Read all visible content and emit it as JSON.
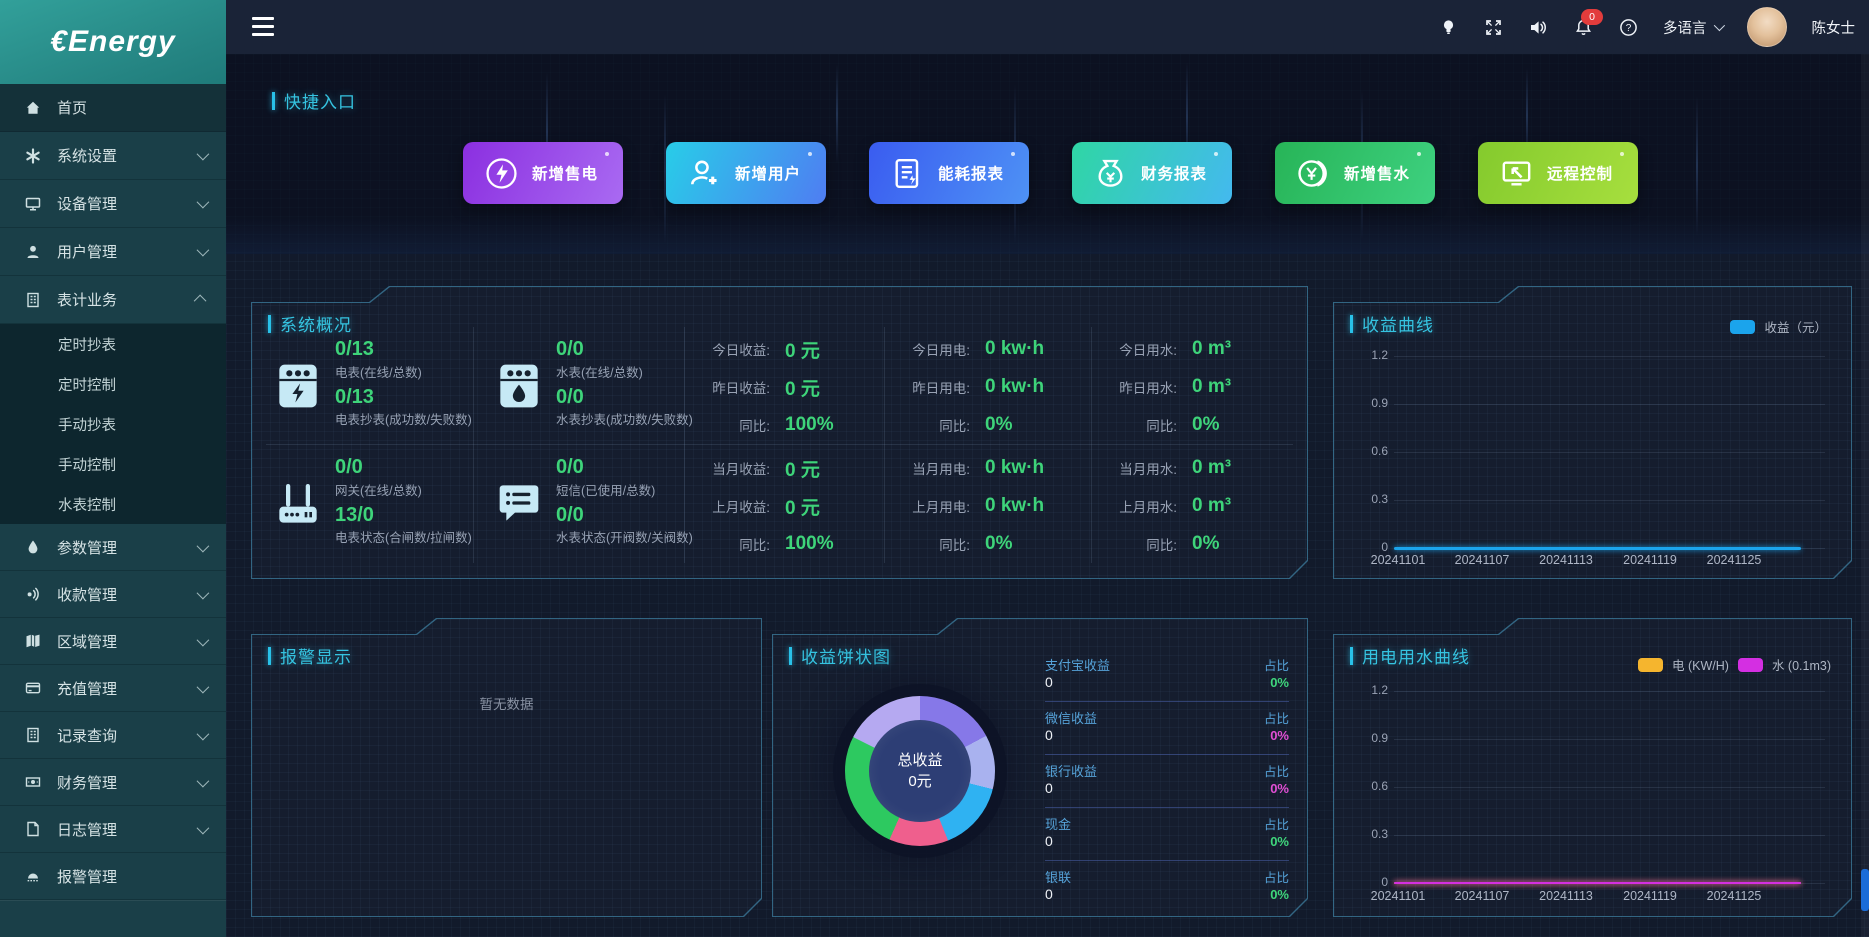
{
  "topbar": {
    "notification_count": "0",
    "language_label": "多语言",
    "username": "陈女士"
  },
  "sidebar": {
    "logo_text": "€Energy",
    "menu_top": [
      {
        "label": "首页",
        "icon": "home-icon",
        "active": true,
        "chevron": ""
      },
      {
        "label": "系统设置",
        "icon": "gear-icon",
        "chevron": "down"
      },
      {
        "label": "设备管理",
        "icon": "monitor-icon",
        "chevron": "down"
      },
      {
        "label": "用户管理",
        "icon": "user-icon",
        "chevron": "down"
      },
      {
        "label": "表计业务",
        "icon": "meter-icon",
        "chevron": "up"
      }
    ],
    "submenu": [
      "定时抄表",
      "定时控制",
      "手动抄表",
      "手动控制",
      "水表控制"
    ],
    "menu_bottom": [
      {
        "label": "参数管理",
        "icon": "droplet-icon",
        "chevron": "down"
      },
      {
        "label": "收款管理",
        "icon": "payment-icon",
        "chevron": "down"
      },
      {
        "label": "区域管理",
        "icon": "map-icon",
        "chevron": "down"
      },
      {
        "label": "充值管理",
        "icon": "card-icon",
        "chevron": "down"
      },
      {
        "label": "记录查询",
        "icon": "records-icon",
        "chevron": "down"
      },
      {
        "label": "财务管理",
        "icon": "finance-icon",
        "chevron": "down"
      },
      {
        "label": "日志管理",
        "icon": "log-icon",
        "chevron": "down"
      },
      {
        "label": "报警管理",
        "icon": "alarm-icon",
        "chevron": ""
      }
    ]
  },
  "quick_entry": {
    "title": "快捷入口",
    "buttons": [
      {
        "label": "新增售电",
        "icon": "lightning-icon",
        "color_from": "#8b2fe0",
        "color_to": "#a96af2"
      },
      {
        "label": "新增用户",
        "icon": "user-plus-icon",
        "color_from": "#28cde8",
        "color_to": "#4f7df2"
      },
      {
        "label": "能耗报表",
        "icon": "report-icon",
        "color_from": "#3a5cf0",
        "color_to": "#4e92f5"
      },
      {
        "label": "财务报表",
        "icon": "moneybag-icon",
        "color_from": "#2fd6a4",
        "color_to": "#44b9ef"
      },
      {
        "label": "新增售水",
        "icon": "coin-icon",
        "color_from": "#27b457",
        "color_to": "#3ed180"
      },
      {
        "label": "远程控制",
        "icon": "remote-icon",
        "color_from": "#84ca2d",
        "color_to": "#a7df3e"
      }
    ]
  },
  "system_overview": {
    "title": "系统概况",
    "meter_stats": [
      {
        "icon": "electric-meter-icon",
        "value1": "0/13",
        "label1": "电表(在线/总数)",
        "value2": "0/13",
        "label2": "电表抄表(成功数/失败数)"
      },
      {
        "icon": "water-meter-icon",
        "value1": "0/0",
        "label1": "水表(在线/总数)",
        "value2": "0/0",
        "label2": "水表抄表(成功数/失败数)"
      },
      {
        "icon": "gateway-icon",
        "value1": "0/0",
        "label1": "网关(在线/总数)",
        "value2": "13/0",
        "label2": "电表状态(合闸数/拉闸数)"
      },
      {
        "icon": "sms-icon",
        "value1": "0/0",
        "label1": "短信(已使用/总数)",
        "value2": "0/0",
        "label2": "水表状态(开阀数/关阀数)"
      }
    ],
    "stat_columns": [
      {
        "rows": [
          {
            "label": "今日收益:",
            "value": "0 元"
          },
          {
            "label": "昨日收益:",
            "value": "0 元"
          },
          {
            "label": "同比:",
            "value": "100%"
          },
          {
            "label": "当月收益:",
            "value": "0 元"
          },
          {
            "label": "上月收益:",
            "value": "0 元"
          },
          {
            "label": "同比:",
            "value": "100%"
          }
        ]
      },
      {
        "rows": [
          {
            "label": "今日用电:",
            "value": "0 kw·h"
          },
          {
            "label": "昨日用电:",
            "value": "0 kw·h"
          },
          {
            "label": "同比:",
            "value": "0%"
          },
          {
            "label": "当月用电:",
            "value": "0 kw·h"
          },
          {
            "label": "上月用电:",
            "value": "0 kw·h"
          },
          {
            "label": "同比:",
            "value": "0%"
          }
        ]
      },
      {
        "rows": [
          {
            "label": "今日用水:",
            "value": "0 m³"
          },
          {
            "label": "昨日用水:",
            "value": "0 m³"
          },
          {
            "label": "同比:",
            "value": "0%"
          },
          {
            "label": "当月用水:",
            "value": "0 m³"
          },
          {
            "label": "上月用水:",
            "value": "0 m³"
          },
          {
            "label": "同比:",
            "value": "0%"
          }
        ]
      }
    ]
  },
  "alarm_panel": {
    "title": "报警显示",
    "empty_text": "暂无数据"
  },
  "pie_panel": {
    "title": "收益饼状图",
    "center_title": "总收益",
    "center_value": "0元",
    "center_color": "#2d3e75",
    "legend": [
      {
        "label": "支付宝收益",
        "value": "0",
        "ratio_label": "占比",
        "ratio": "0%",
        "ratio_color": "#3fd67c"
      },
      {
        "label": "微信收益",
        "value": "0",
        "ratio_label": "占比",
        "ratio": "0%",
        "ratio_color": "#e14fd4"
      },
      {
        "label": "银行收益",
        "value": "0",
        "ratio_label": "占比",
        "ratio": "0%",
        "ratio_color": "#e14fd4"
      },
      {
        "label": "现金",
        "value": "0",
        "ratio_label": "占比",
        "ratio": "0%",
        "ratio_color": "#3fd67c"
      },
      {
        "label": "银联",
        "value": "0",
        "ratio_label": "占比",
        "ratio": "0%",
        "ratio_color": "#3fd67c"
      }
    ],
    "visual_segments": [
      {
        "color": "#8678e8",
        "to": 62
      },
      {
        "color": "#a9b2ef",
        "to": 104
      },
      {
        "color": "#2fb2f2",
        "to": 158
      },
      {
        "color": "#ef5f8d",
        "to": 204
      },
      {
        "color": "#2dc960",
        "to": 297
      },
      {
        "color": "#b5a9f1",
        "to": 360
      }
    ]
  },
  "revenue_chart": {
    "title": "收益曲线",
    "legend": [
      {
        "name": "收益（元）",
        "color": "#1ba4ec"
      }
    ],
    "y_ticks": [
      "1.2",
      "0.9",
      "0.6",
      "0.3",
      "0"
    ],
    "x_ticks": [
      "20241101",
      "20241107",
      "20241113",
      "20241119",
      "20241125"
    ],
    "series": [
      {
        "name": "收益（元）",
        "color": "#1ba4ec",
        "thickness": 3,
        "values": [
          0,
          0,
          0,
          0,
          0
        ]
      }
    ]
  },
  "usage_chart": {
    "title": "用电用水曲线",
    "legend": [
      {
        "name": "电 (KW/H)",
        "color": "#f5b52e"
      },
      {
        "name": "水 (0.1m3)",
        "color": "#d42fe2"
      }
    ],
    "y_ticks": [
      "1.2",
      "0.9",
      "0.6",
      "0.3",
      "0"
    ],
    "x_ticks": [
      "20241101",
      "20241107",
      "20241113",
      "20241119",
      "20241125"
    ],
    "series": [
      {
        "name": "电 (KW/H)",
        "color": "#f5b52e",
        "thickness": 2,
        "values": [
          0,
          0,
          0,
          0,
          0
        ]
      },
      {
        "name": "水 (0.1m3)",
        "color": "#d42fe2",
        "thickness": 2,
        "values": [
          0,
          0,
          0,
          0,
          0
        ]
      }
    ]
  },
  "chart_data": [
    {
      "type": "line",
      "title": "收益曲线",
      "xlabel": "",
      "ylabel": "",
      "x": [
        "20241101",
        "20241107",
        "20241113",
        "20241119",
        "20241125"
      ],
      "series": [
        {
          "name": "收益（元）",
          "values": [
            0,
            0,
            0,
            0,
            0
          ]
        }
      ],
      "ylim": [
        0,
        1.2
      ],
      "y_ticks": [
        0,
        0.3,
        0.6,
        0.9,
        1.2
      ],
      "grid": true,
      "legend_position": "top-right"
    },
    {
      "type": "pie",
      "title": "收益饼状图",
      "labels": [
        "支付宝收益",
        "微信收益",
        "银行收益",
        "现金",
        "银联"
      ],
      "values": [
        0,
        0,
        0,
        0,
        0
      ],
      "ratios": [
        "0%",
        "0%",
        "0%",
        "0%",
        "0%"
      ],
      "center_text": "总收益 0元"
    },
    {
      "type": "line",
      "title": "用电用水曲线",
      "xlabel": "",
      "ylabel": "",
      "x": [
        "20241101",
        "20241107",
        "20241113",
        "20241119",
        "20241125"
      ],
      "series": [
        {
          "name": "电 (KW/H)",
          "values": [
            0,
            0,
            0,
            0,
            0
          ]
        },
        {
          "name": "水 (0.1m3)",
          "values": [
            0,
            0,
            0,
            0,
            0
          ]
        }
      ],
      "ylim": [
        0,
        1.2
      ],
      "y_ticks": [
        0,
        0.3,
        0.6,
        0.9,
        1.2
      ],
      "grid": true,
      "legend_position": "top-right"
    }
  ]
}
